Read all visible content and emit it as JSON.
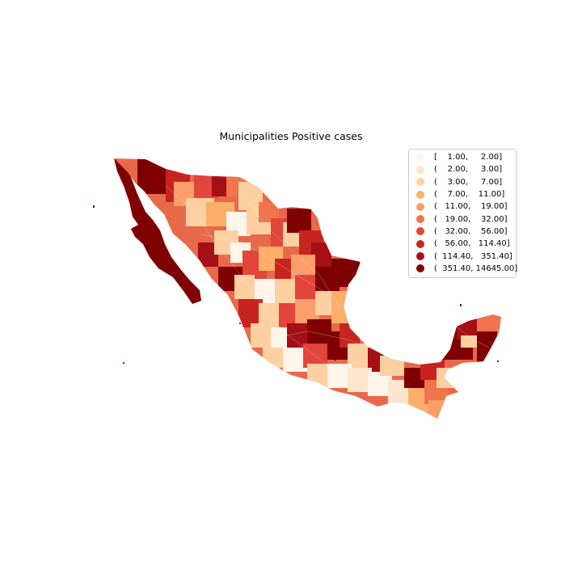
{
  "title": "Municipalities Positive cases",
  "legend": {
    "items": [
      {
        "label": "[    1.00,     2.00]",
        "color": "#fff5eb"
      },
      {
        "label": "(    2.00,     3.00]",
        "color": "#fee6ce"
      },
      {
        "label": "(    3.00,     7.00]",
        "color": "#fdd0a2"
      },
      {
        "label": "(    7.00,    11.00]",
        "color": "#fdae6b"
      },
      {
        "label": "(   11.00,    19.00]",
        "color": "#fc9d6c"
      },
      {
        "label": "(   19.00,    32.00]",
        "color": "#f0744c"
      },
      {
        "label": "(   32.00,    56.00]",
        "color": "#e2453b"
      },
      {
        "label": "(   56.00,   114.40]",
        "color": "#c8241f"
      },
      {
        "label": "(  114.40,   351.40]",
        "color": "#a50f15"
      },
      {
        "label": "(  351.40, 14645.00]",
        "color": "#7f0000"
      }
    ]
  },
  "map": {
    "region": "Mexico",
    "classification": "quantile bins of positive cases by municipality",
    "colormap": "OrRd"
  }
}
